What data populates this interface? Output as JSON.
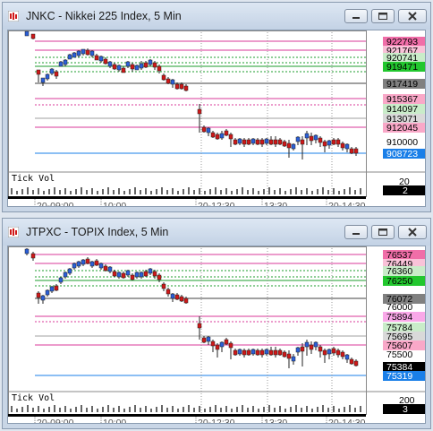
{
  "windows": [
    {
      "title": "JNKC - Nikkei 225 Index, 5 Min",
      "price_labels": [
        {
          "text": "922793",
          "bg": "#f06ea8",
          "fg": "#000000"
        },
        {
          "text": "921767",
          "bg": "#f9c2d8",
          "fg": "#000000"
        },
        {
          "text": "920741",
          "bg": "#c9ecc9",
          "fg": "#000000"
        },
        {
          "text": "919471",
          "bg": "#22c72e",
          "fg": "#000000"
        },
        {
          "text": "917419",
          "bg": "#808080",
          "fg": "#000000"
        },
        {
          "text": "915367",
          "bg": "#f9a8c8",
          "fg": "#000000"
        },
        {
          "text": "914097",
          "bg": "#c9ecc9",
          "fg": "#000000"
        },
        {
          "text": "913071",
          "bg": "#d9d9d9",
          "fg": "#000000"
        },
        {
          "text": "912045",
          "bg": "#f9a8c8",
          "fg": "#000000"
        },
        {
          "text": "910000",
          "bg": "none",
          "fg": "#000000"
        },
        {
          "text": "908723",
          "bg": "#1a7fe8",
          "fg": "#ffffff"
        }
      ],
      "volume_labels": {
        "scale": "20",
        "current": "2"
      },
      "indicator_label": "Tick Vol",
      "time_labels": [
        "20-09:00",
        "10:00",
        "20-12:30",
        "13:30",
        "20-14:30"
      ]
    },
    {
      "title": "JTPXC - TOPIX Index, 5 Min",
      "price_labels": [
        {
          "text": "76537",
          "bg": "#f06ea8",
          "fg": "#000000"
        },
        {
          "text": "76449",
          "bg": "#f9c2d8",
          "fg": "#000000"
        },
        {
          "text": "76360",
          "bg": "#c9ecc9",
          "fg": "#000000"
        },
        {
          "text": "76250",
          "bg": "#22c72e",
          "fg": "#000000"
        },
        {
          "text": "76072",
          "bg": "#808080",
          "fg": "#000000"
        },
        {
          "text": "76000",
          "bg": "none",
          "fg": "#000000"
        },
        {
          "text": "75894",
          "bg": "#f9a8e8",
          "fg": "#000000"
        },
        {
          "text": "75784",
          "bg": "#c9ecc9",
          "fg": "#000000"
        },
        {
          "text": "75695",
          "bg": "#d9d9d9",
          "fg": "#000000"
        },
        {
          "text": "75607",
          "bg": "#f9a8c8",
          "fg": "#000000"
        },
        {
          "text": "75500",
          "bg": "none",
          "fg": "#000000"
        },
        {
          "text": "75384",
          "bg": "#000000",
          "fg": "#ffffff"
        },
        {
          "text": "75319",
          "bg": "#1a7fe8",
          "fg": "#ffffff"
        }
      ],
      "volume_labels": {
        "scale": "200",
        "current": "3"
      },
      "indicator_label": "Tick Vol",
      "time_labels": [
        "20-09:00",
        "10:00",
        "20-12:30",
        "13:30",
        "20-14:30"
      ]
    }
  ],
  "colors": {
    "up": "#2b5fd9",
    "down": "#d01818",
    "level_magenta": "#d83a9a",
    "level_green": "#1e9e2e",
    "level_gray": "#404040",
    "current_line": "#1a7fe8"
  }
}
